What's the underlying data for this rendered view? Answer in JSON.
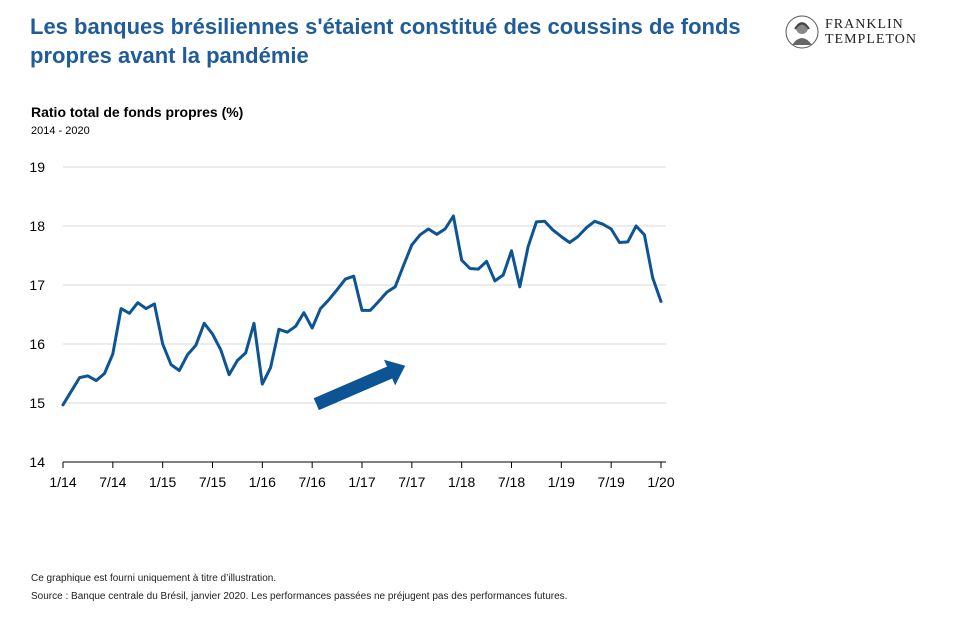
{
  "header": {
    "title": "Les banques brésiliennes s'étaient constitué des coussins de fonds propres avant la pandémie",
    "logo_line1": "FRANKLIN",
    "logo_line2": "TEMPLETON"
  },
  "colors": {
    "title": "#1f5c99",
    "series": "#0d5494",
    "grid": "#d9d9d9"
  },
  "chart_data": {
    "type": "line",
    "title": "Ratio total de fonds propres (%)",
    "subtitle": "2014 - 2020",
    "xlabel": "",
    "ylabel": "",
    "ylim": [
      14,
      19
    ],
    "yticks": [
      "14",
      "15",
      "16",
      "17",
      "18",
      "19"
    ],
    "xtick_labels": [
      "1/14",
      "7/14",
      "1/15",
      "7/15",
      "1/16",
      "7/16",
      "1/17",
      "7/17",
      "1/18",
      "7/18",
      "1/19",
      "7/19",
      "1/20"
    ],
    "grid": true,
    "legend": "none",
    "annotation": "upward arrow",
    "series": [
      {
        "x": [
          "01/14",
          "02/14",
          "03/14",
          "04/14",
          "05/14",
          "06/14",
          "07/14",
          "08/14",
          "09/14",
          "10/14",
          "11/14",
          "12/14",
          "01/15",
          "02/15",
          "03/15",
          "04/15",
          "05/15",
          "06/15",
          "07/15",
          "08/15",
          "09/15",
          "10/15",
          "11/15",
          "12/15",
          "01/16",
          "02/16",
          "03/16",
          "04/16",
          "05/16",
          "06/16",
          "07/16",
          "08/16",
          "09/16",
          "10/16",
          "11/16",
          "12/16",
          "01/17",
          "02/17",
          "03/17",
          "04/17",
          "05/17",
          "06/17",
          "07/17",
          "08/17",
          "09/17",
          "10/17",
          "11/17",
          "12/17",
          "01/18",
          "02/18",
          "03/18",
          "04/18",
          "05/18",
          "06/18",
          "07/18",
          "08/18",
          "09/18",
          "10/18",
          "11/18",
          "12/18",
          "01/19",
          "02/19",
          "03/19",
          "04/19",
          "05/19",
          "06/19",
          "07/19",
          "08/19",
          "09/19",
          "10/19",
          "11/19",
          "12/19",
          "01/20"
        ],
        "values": [
          14.97,
          15.2,
          15.43,
          15.46,
          15.38,
          15.5,
          15.83,
          16.6,
          16.52,
          16.7,
          16.6,
          16.68,
          16.0,
          15.65,
          15.55,
          15.82,
          15.98,
          16.35,
          16.17,
          15.9,
          15.48,
          15.72,
          15.85,
          16.35,
          15.32,
          15.6,
          16.25,
          16.2,
          16.3,
          16.53,
          16.27,
          16.6,
          16.75,
          16.92,
          17.1,
          17.15,
          16.57,
          16.57,
          16.72,
          16.88,
          16.97,
          17.33,
          17.68,
          17.85,
          17.95,
          17.86,
          17.95,
          18.17,
          17.42,
          17.28,
          17.27,
          17.4,
          17.07,
          17.17,
          17.58,
          16.97,
          17.65,
          18.07,
          18.08,
          17.93,
          17.82,
          17.72,
          17.82,
          17.97,
          18.08,
          18.03,
          17.95,
          17.72,
          17.73,
          18.0,
          17.85,
          17.12,
          16.72
        ]
      }
    ]
  },
  "footer": {
    "disclaimer": "Ce graphique est fourni uniquement à titre d’illustration.",
    "source": "Source : Banque centrale du Brésil, janvier 2020. Les performances passées ne préjugent pas des performances futures."
  }
}
